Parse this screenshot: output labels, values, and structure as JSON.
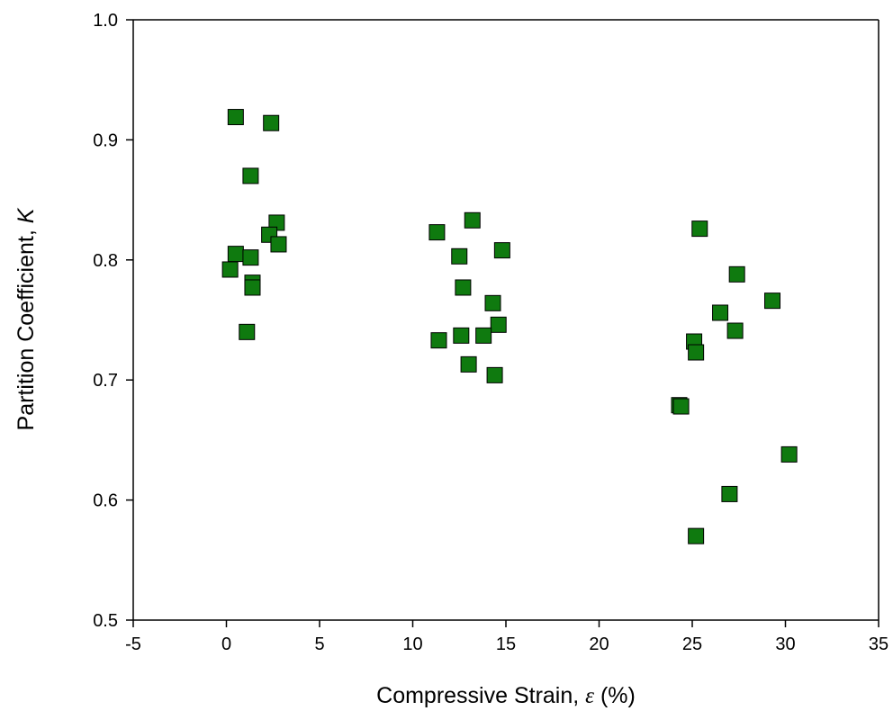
{
  "chart_data": {
    "type": "scatter",
    "xlabel": "Compressive Strain, ε (%)",
    "xlabel_parts": {
      "pre": "Compressive Strain, ",
      "sym": "ε",
      "post": " (%)"
    },
    "ylabel": "Partition Coefficient, K",
    "ylabel_parts": {
      "pre": "Partition Coefficient, ",
      "sym": "K"
    },
    "xlim": [
      -5,
      35
    ],
    "ylim": [
      0.5,
      1.0
    ],
    "xticks": [
      "-5",
      "0",
      "5",
      "10",
      "15",
      "20",
      "25",
      "30",
      "35"
    ],
    "yticks": [
      "0.5",
      "0.6",
      "0.7",
      "0.8",
      "0.9",
      "1.0"
    ],
    "grid": false,
    "marker": "square",
    "marker_color": "#0f7a0f",
    "series": [
      {
        "x": [
          0.5,
          2.4,
          1.3,
          2.7,
          2.3,
          2.8,
          0.5,
          0.2,
          1.3,
          1.4,
          1.4,
          1.1,
          11.3,
          13.2,
          12.5,
          14.8,
          12.7,
          14.3,
          14.6,
          11.4,
          12.6,
          13.8,
          13.0,
          14.4,
          25.4,
          27.4,
          29.3,
          26.5,
          27.3,
          25.1,
          25.2,
          24.3,
          24.4,
          30.2,
          27.0,
          25.2
        ],
        "y": [
          0.919,
          0.914,
          0.87,
          0.831,
          0.821,
          0.813,
          0.805,
          0.792,
          0.802,
          0.781,
          0.777,
          0.74,
          0.823,
          0.833,
          0.803,
          0.808,
          0.777,
          0.764,
          0.746,
          0.733,
          0.737,
          0.737,
          0.713,
          0.704,
          0.826,
          0.788,
          0.766,
          0.756,
          0.741,
          0.732,
          0.723,
          0.679,
          0.678,
          0.638,
          0.605,
          0.57
        ]
      }
    ]
  }
}
